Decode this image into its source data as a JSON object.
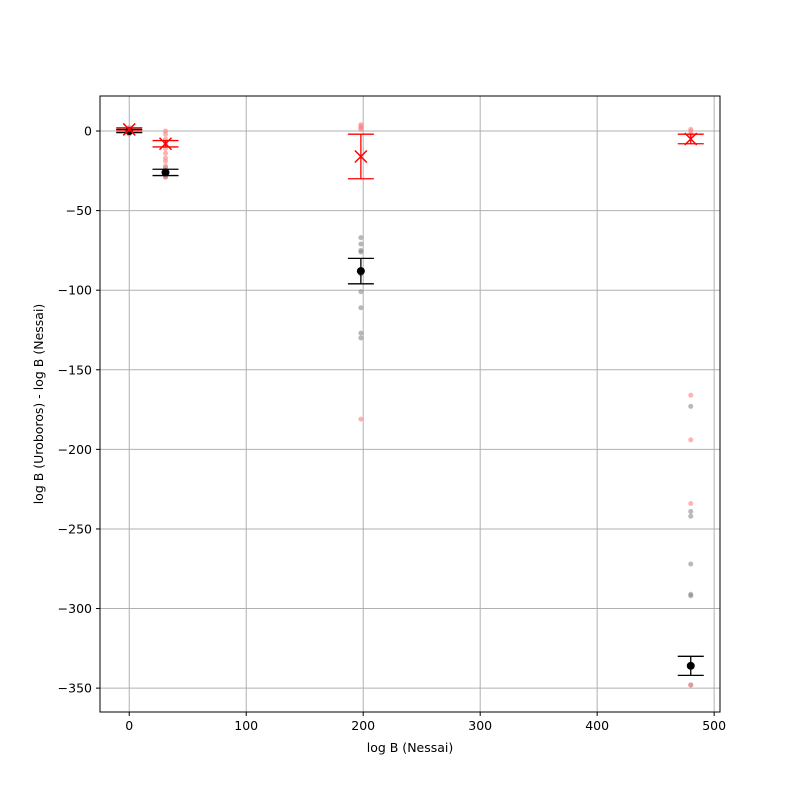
{
  "chart_data": {
    "type": "scatter",
    "title": "",
    "xlabel": "log B (Nessai)",
    "ylabel": "log B (Uroboros) - log B (Nessai)",
    "xlim": [
      -25,
      505
    ],
    "ylim": [
      -365,
      22
    ],
    "grid": true,
    "xticks": [
      0,
      100,
      200,
      300,
      400,
      500
    ],
    "yticks": [
      0,
      -50,
      -100,
      -150,
      -200,
      -250,
      -300,
      -350
    ],
    "colors": {
      "black": "#000000",
      "red": "#ff0000",
      "grid": "#b0b0b0",
      "gray_pts": "#808080",
      "pink_pts": "#ff8080"
    },
    "series": [
      {
        "marker": "gray-dot",
        "points": [
          [
            0,
            1
          ],
          [
            0,
            0
          ],
          [
            0,
            -1
          ],
          [
            0,
            2
          ],
          [
            0,
            -1.5
          ],
          [
            31,
            -23
          ],
          [
            31,
            -25
          ],
          [
            31,
            -26
          ],
          [
            31,
            -28
          ],
          [
            31,
            -29
          ],
          [
            198,
            -67
          ],
          [
            198,
            -71
          ],
          [
            198,
            -75
          ],
          [
            198,
            -76
          ],
          [
            198,
            -90
          ],
          [
            198,
            -101
          ],
          [
            198,
            -111
          ],
          [
            198,
            -127
          ],
          [
            198,
            -130
          ],
          [
            480,
            -173
          ],
          [
            480,
            -239
          ],
          [
            480,
            -242
          ],
          [
            480,
            -272
          ],
          [
            480,
            -291
          ],
          [
            480,
            -292
          ],
          [
            480,
            -348
          ]
        ]
      },
      {
        "marker": "pink-dot",
        "points": [
          [
            0,
            2
          ],
          [
            0,
            0
          ],
          [
            0,
            -1
          ],
          [
            0,
            1
          ],
          [
            0,
            -2
          ],
          [
            31,
            0
          ],
          [
            31,
            -2
          ],
          [
            31,
            -5
          ],
          [
            31,
            -8
          ],
          [
            31,
            -11
          ],
          [
            31,
            -14
          ],
          [
            31,
            -17
          ],
          [
            31,
            -19
          ],
          [
            31,
            -22
          ],
          [
            31,
            -27
          ],
          [
            31,
            -29
          ],
          [
            198,
            4
          ],
          [
            198,
            3
          ],
          [
            198,
            2
          ],
          [
            198,
            1
          ],
          [
            198,
            -181
          ],
          [
            480,
            1
          ],
          [
            480,
            0
          ],
          [
            480,
            -2
          ],
          [
            480,
            -166
          ],
          [
            480,
            -194
          ],
          [
            480,
            -234
          ],
          [
            480,
            -348
          ]
        ]
      },
      {
        "marker": "black-errorbar",
        "points": [
          {
            "x": 0,
            "y": 0,
            "err": 1
          },
          {
            "x": 31,
            "y": -26,
            "err": 2
          },
          {
            "x": 198,
            "y": -88,
            "err": 8
          },
          {
            "x": 480,
            "y": -336,
            "err": 6
          }
        ]
      },
      {
        "marker": "red-x-errorbar",
        "points": [
          {
            "x": 0,
            "y": 1,
            "err": 1
          },
          {
            "x": 31,
            "y": -8,
            "err": 2
          },
          {
            "x": 198,
            "y": -16,
            "err": 14
          },
          {
            "x": 480,
            "y": -5,
            "err": 3
          }
        ]
      }
    ]
  }
}
